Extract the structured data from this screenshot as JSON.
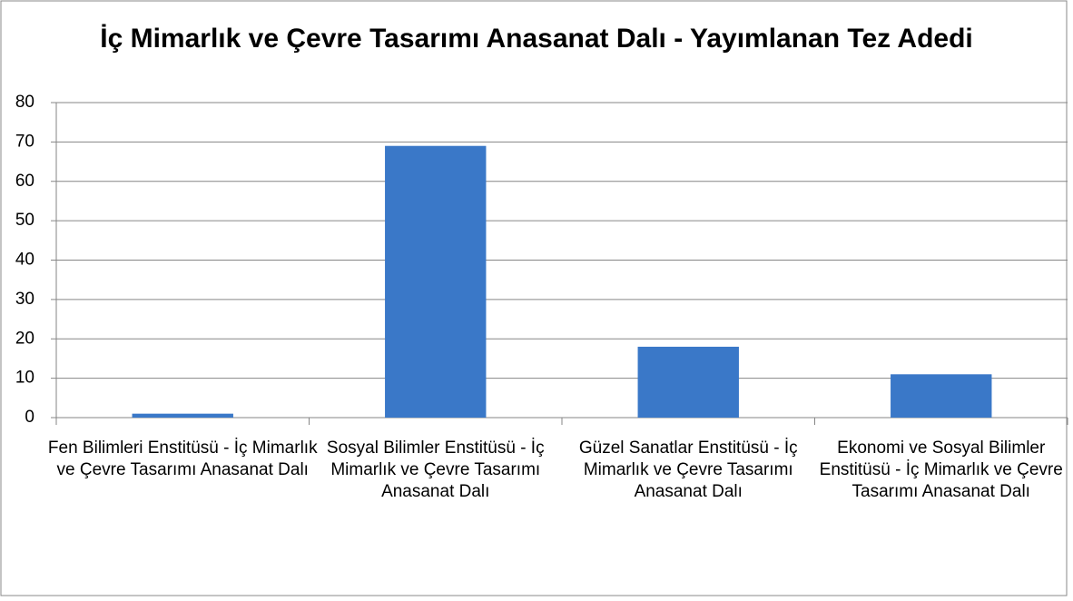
{
  "chart_data": {
    "type": "bar",
    "title": "İç Mimarlık ve Çevre Tasarımı Anasanat Dalı - Yayımlanan Tez Adedi",
    "categories": [
      "Fen Bilimleri Enstitüsü - İç Mimarlık ve Çevre Tasarımı Anasanat Dalı",
      "Sosyal Bilimler Enstitüsü - İç Mimarlık ve Çevre Tasarımı Anasanat Dalı",
      "Güzel Sanatlar Enstitüsü - İç Mimarlık ve Çevre Tasarımı Anasanat Dalı",
      "Ekonomi ve Sosyal Bilimler Enstitüsü - İç Mimarlık ve Çevre Tasarımı Anasanat Dalı"
    ],
    "values": [
      1,
      69,
      18,
      11
    ],
    "color": "#3a78c8",
    "ylim": [
      0,
      80
    ],
    "yticks": [
      0,
      10,
      20,
      30,
      40,
      50,
      60,
      70,
      80
    ],
    "grid": true
  }
}
